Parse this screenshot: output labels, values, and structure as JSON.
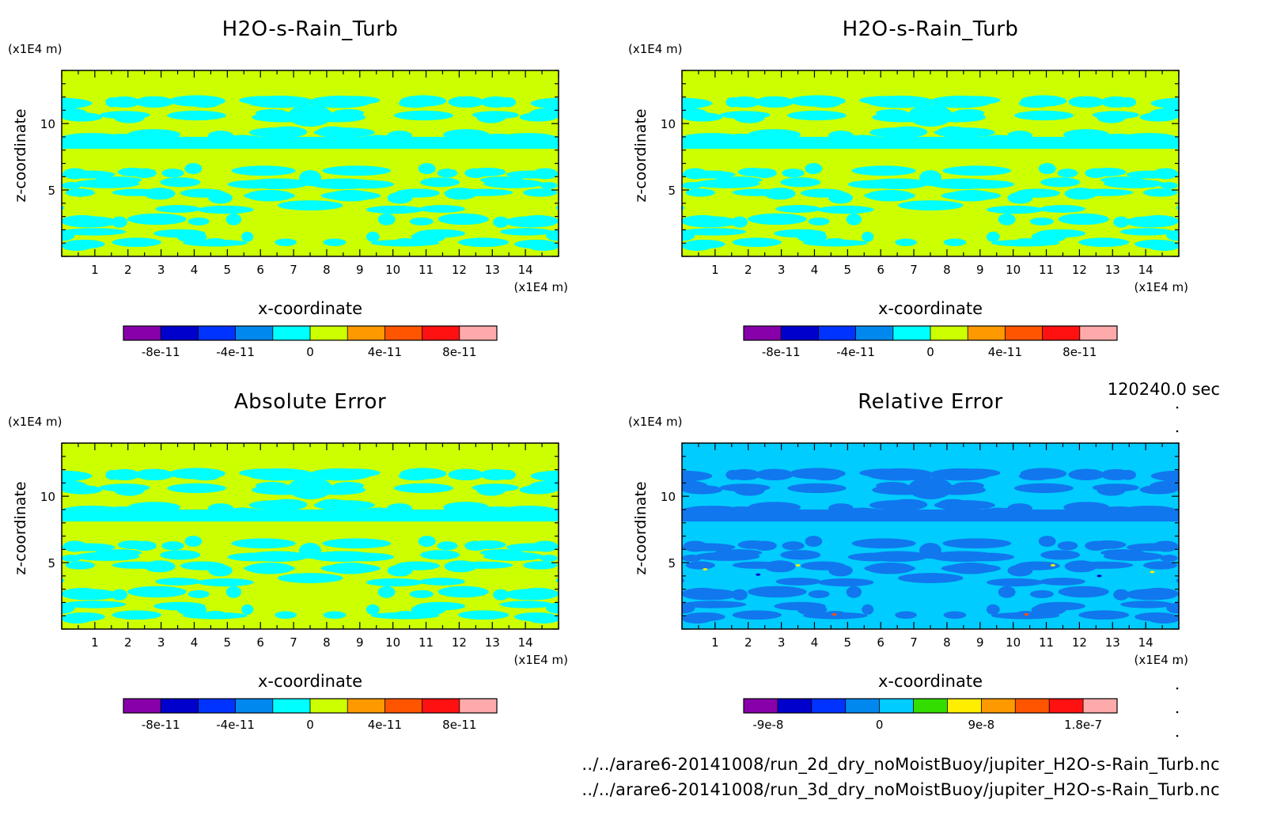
{
  "time_label": "120240.0 sec",
  "files": [
    "../../arare6-20141008/run_2d_dry_noMoistBuoy/jupiter_H2O-s-Rain_Turb.nc",
    "../../arare6-20141008/run_3d_dry_noMoistBuoy/jupiter_H2O-s-Rain_Turb.nc"
  ],
  "chart_data": [
    {
      "type": "heatmap",
      "title": "H2O-s-Rain_Turb",
      "xlabel": "x-coordinate",
      "ylabel": "z-coordinate",
      "x_unit": "(x1E4 m)",
      "y_unit": "(x1E4 m)",
      "xlim": [
        0,
        15
      ],
      "ylim": [
        0,
        15
      ],
      "x_ticks": [
        "1",
        "2",
        "3",
        "4",
        "5",
        "6",
        "7",
        "8",
        "9",
        "10",
        "11",
        "12",
        "13",
        "14"
      ],
      "y_ticks": [
        "5",
        "10"
      ],
      "field": "values near 0 (yellow-green above 0, cyan at/below 0)",
      "colorbar": {
        "colors": [
          "#8800aa",
          "#0000cc",
          "#0033ff",
          "#0088ee",
          "#00ffff",
          "#ccff00",
          "#ff9900",
          "#ff5500",
          "#ff1111",
          "#ffaaaa"
        ],
        "tick_labels": [
          "-8e-11",
          "-4e-11",
          "0",
          "4e-11",
          "8e-11"
        ]
      },
      "background_color": "#ccff00",
      "feature_color": "#00ffff"
    },
    {
      "type": "heatmap",
      "title": "H2O-s-Rain_Turb",
      "xlabel": "x-coordinate",
      "ylabel": "z-coordinate",
      "x_unit": "(x1E4 m)",
      "y_unit": "(x1E4 m)",
      "xlim": [
        0,
        15
      ],
      "ylim": [
        0,
        15
      ],
      "x_ticks": [
        "1",
        "2",
        "3",
        "4",
        "5",
        "6",
        "7",
        "8",
        "9",
        "10",
        "11",
        "12",
        "13",
        "14"
      ],
      "y_ticks": [
        "5",
        "10"
      ],
      "colorbar": {
        "colors": [
          "#8800aa",
          "#0000cc",
          "#0033ff",
          "#0088ee",
          "#00ffff",
          "#ccff00",
          "#ff9900",
          "#ff5500",
          "#ff1111",
          "#ffaaaa"
        ],
        "tick_labels": [
          "-8e-11",
          "-4e-11",
          "0",
          "4e-11",
          "8e-11"
        ]
      },
      "background_color": "#ccff00",
      "feature_color": "#00ffff"
    },
    {
      "type": "heatmap",
      "title": "Absolute Error",
      "xlabel": "x-coordinate",
      "ylabel": "z-coordinate",
      "x_unit": "(x1E4 m)",
      "y_unit": "(x1E4 m)",
      "xlim": [
        0,
        15
      ],
      "ylim": [
        0,
        15
      ],
      "x_ticks": [
        "1",
        "2",
        "3",
        "4",
        "5",
        "6",
        "7",
        "8",
        "9",
        "10",
        "11",
        "12",
        "13",
        "14"
      ],
      "y_ticks": [
        "5",
        "10"
      ],
      "colorbar": {
        "colors": [
          "#8800aa",
          "#0000cc",
          "#0033ff",
          "#0088ee",
          "#00ffff",
          "#ccff00",
          "#ff9900",
          "#ff5500",
          "#ff1111",
          "#ffaaaa"
        ],
        "tick_labels": [
          "-8e-11",
          "-4e-11",
          "0",
          "4e-11",
          "8e-11"
        ]
      },
      "background_color": "#ccff00",
      "feature_color": "#00ffff"
    },
    {
      "type": "heatmap",
      "title": "Relative Error",
      "xlabel": "x-coordinate",
      "ylabel": "z-coordinate",
      "x_unit": "(x1E4 m)",
      "y_unit": "(x1E4 m)",
      "xlim": [
        0,
        15
      ],
      "ylim": [
        0,
        15
      ],
      "x_ticks": [
        "1",
        "2",
        "3",
        "4",
        "5",
        "6",
        "7",
        "8",
        "9",
        "10",
        "11",
        "12",
        "13",
        "14"
      ],
      "y_ticks": [
        "5",
        "10"
      ],
      "colorbar": {
        "colors": [
          "#8800aa",
          "#0000cc",
          "#0033ff",
          "#0088ee",
          "#00ccff",
          "#33dd00",
          "#ffee00",
          "#ff9900",
          "#ff5500",
          "#ff1111",
          "#ffaaaa"
        ],
        "tick_labels": [
          "-9e-8",
          "0",
          "9e-8",
          "1.8e-7"
        ]
      },
      "background_color": "#00ccff",
      "feature_color": "#1177ee"
    }
  ]
}
